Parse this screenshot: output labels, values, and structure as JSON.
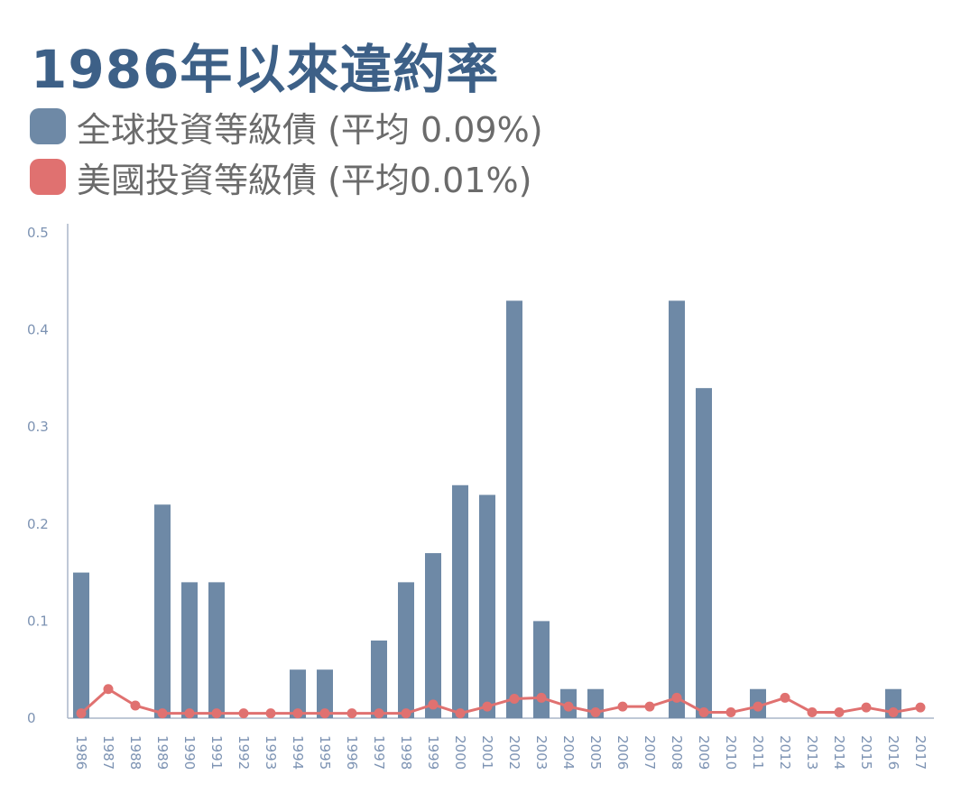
{
  "title": "1986年以來違約率",
  "colors": {
    "global": "#6e89a6",
    "us": "#e07170",
    "axis": "#aab6c8",
    "tick_text": "#7d93b3"
  },
  "legend": [
    {
      "label": "全球投資等級債 (平均 0.09%)",
      "color": "#6e89a6"
    },
    {
      "label": "美國投資等級債 (平均0.01%)",
      "color": "#e07170"
    }
  ],
  "chart_data": {
    "type": "bar",
    "title": "1986年以來違約率",
    "xlabel": "",
    "ylabel": "",
    "ylim": [
      0,
      0.5
    ],
    "y_ticks": [
      "0",
      "0.1",
      "0.2",
      "0.3",
      "0.4",
      "0.5"
    ],
    "categories": [
      "1986",
      "1987",
      "1988",
      "1989",
      "1990",
      "1991",
      "1992",
      "1993",
      "1994",
      "1995",
      "1996",
      "1997",
      "1998",
      "1999",
      "2000",
      "2001",
      "2002",
      "2003",
      "2004",
      "2005",
      "2006",
      "2007",
      "2008",
      "2009",
      "2010",
      "2011",
      "2012",
      "2013",
      "2014",
      "2015",
      "2016",
      "2017"
    ],
    "series": [
      {
        "name": "全球投資等級債 (平均 0.09%)",
        "type": "bar",
        "color": "#6e89a6",
        "values": [
          0.15,
          0,
          0,
          0.22,
          0.14,
          0.14,
          0,
          0,
          0.05,
          0.05,
          0,
          0.08,
          0.14,
          0.17,
          0.24,
          0.23,
          0.43,
          0.1,
          0.03,
          0.03,
          0,
          0,
          0.43,
          0.34,
          0,
          0.03,
          0,
          0,
          0,
          0,
          0.03,
          0
        ]
      },
      {
        "name": "美國投資等級債 (平均0.01%)",
        "type": "line",
        "color": "#e07170",
        "values": [
          0.005,
          0.03,
          0.013,
          0.005,
          0.005,
          0.005,
          0.005,
          0.005,
          0.005,
          0.005,
          0.005,
          0.005,
          0.005,
          0.014,
          0.005,
          0.012,
          0.02,
          0.021,
          0.012,
          0.006,
          0.012,
          0.012,
          0.021,
          0.006,
          0.006,
          0.012,
          0.021,
          0.006,
          0.006,
          0.011,
          0.006,
          0.011
        ]
      }
    ],
    "grid": false,
    "legend_position": "top-left"
  }
}
